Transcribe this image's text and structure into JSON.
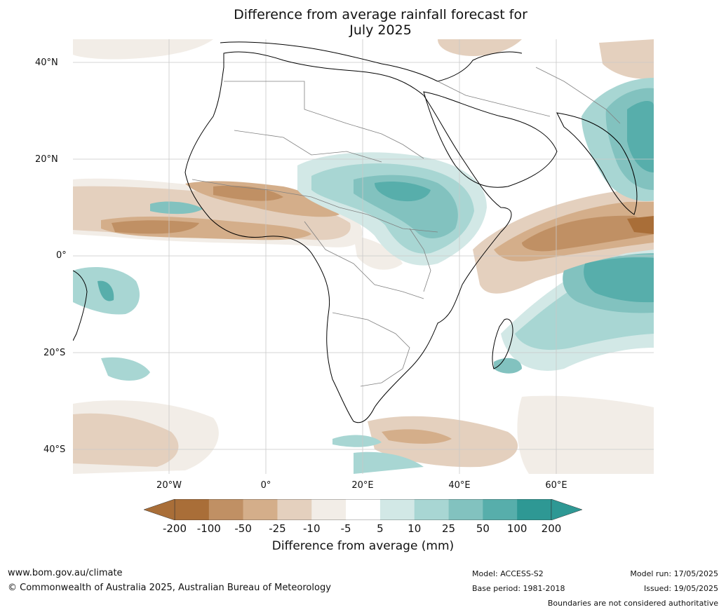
{
  "title_line1": "Difference from average rainfall forecast for",
  "title_line2": "July 2025",
  "lat_labels": [
    "40°N",
    "20°N",
    "0°",
    "20°S",
    "40°S"
  ],
  "lon_labels": [
    "20°W",
    "0°",
    "20°E",
    "40°E",
    "60°E"
  ],
  "colorbar": {
    "label": "Difference from average (mm)",
    "ticks": [
      "-200",
      "-100",
      "-50",
      "-25",
      "-10",
      "-5",
      "5",
      "10",
      "25",
      "50",
      "100",
      "200"
    ],
    "colors": [
      "#a96e38",
      "#c09064",
      "#d4ae8a",
      "#e4d0be",
      "#f2ede7",
      "#ffffff",
      "#d2e8e6",
      "#a8d6d3",
      "#82c2bf",
      "#57aeab",
      "#2e9894"
    ]
  },
  "footer": {
    "url": "www.bom.gov.au/climate",
    "copyright": "© Commonwealth of Australia 2025, Australian Bureau of Meteorology",
    "model": "Model: ACCESS-S2",
    "base_period": "Base period: 1981-2018",
    "model_run": "Model run: 17/05/2025",
    "issued": "Issued: 19/05/2025",
    "disclaimer": "Boundaries are not considered authoritative"
  }
}
